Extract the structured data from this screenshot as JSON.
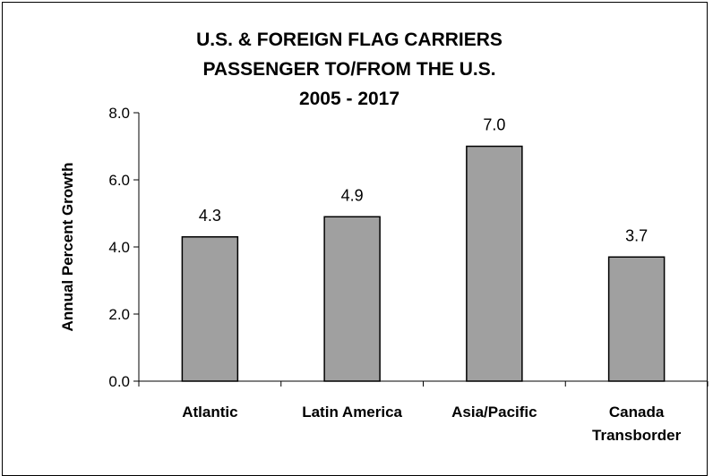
{
  "chart_data": {
    "type": "bar",
    "title_lines": [
      "U.S. & FOREIGN FLAG CARRIERS",
      "PASSENGER TO/FROM THE U.S.",
      "2005 - 2017"
    ],
    "categories": [
      [
        "Atlantic"
      ],
      [
        "Latin America"
      ],
      [
        "Asia/Pacific"
      ],
      [
        "Canada",
        "Transborder"
      ]
    ],
    "values": [
      4.3,
      4.9,
      7.0,
      3.7
    ],
    "value_labels": [
      "4.3",
      "4.9",
      "7.0",
      "3.7"
    ],
    "ylabel": "Annual Percent Growth",
    "xlabel": "",
    "ylim": [
      0,
      8
    ],
    "y_ticks": [
      0,
      2,
      4,
      6,
      8
    ],
    "y_tick_labels": [
      "0.0",
      "2.0",
      "4.0",
      "6.0",
      "8.0"
    ],
    "grid": false,
    "legend": "none",
    "colors": {
      "bar_fill": "#a0a0a0",
      "bar_stroke": "#000000"
    }
  }
}
